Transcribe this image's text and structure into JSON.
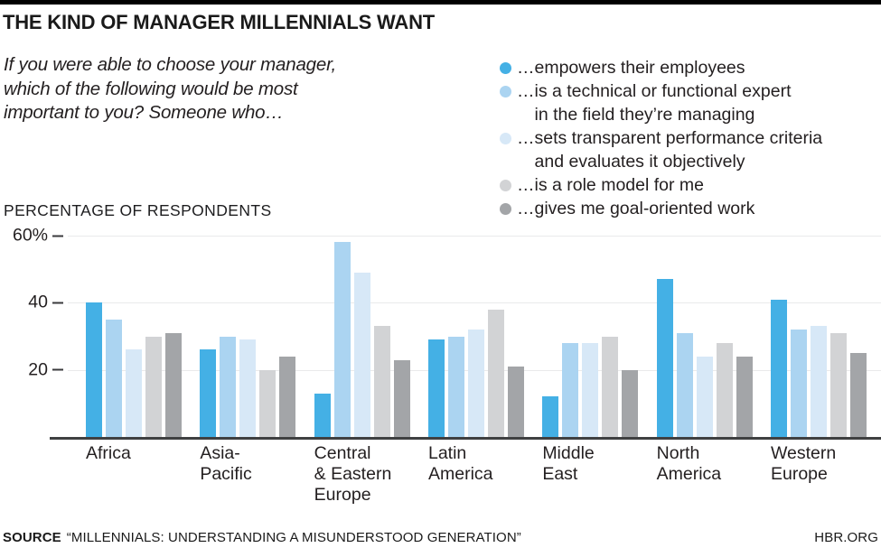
{
  "question": {
    "display": "If you were able to choose your manager,\nwhich of the following would be most\nimportant to you? Someone who…"
  },
  "chart_data": {
    "type": "bar",
    "title": "THE KIND OF MANAGER MILLENNIALS WANT",
    "subtitle": "If you were able to choose your manager, which of the following would be most important to you? Someone who…",
    "ylabel": "PERCENTAGE OF RESPONDENTS",
    "xlabel": "",
    "ylim": [
      0,
      60
    ],
    "yticks": [
      60,
      40,
      20
    ],
    "ytick_labels": [
      "60%",
      "40",
      "20"
    ],
    "grid": true,
    "legend_position": "top-right",
    "legend_prefix": "…",
    "categories": [
      "Africa",
      "Asia-Pacific",
      "Central & Eastern Europe",
      "Latin America",
      "Middle East",
      "North America",
      "Western Europe"
    ],
    "categories_display": [
      "Africa",
      "Asia-\nPacific",
      "Central\n& Eastern\nEurope",
      "Latin\nAmerica",
      "Middle\nEast",
      "North\nAmerica",
      "Western\nEurope"
    ],
    "series": [
      {
        "name": "empowers their employees",
        "label_display": "empowers their employees",
        "color": "#44b0e5",
        "values": [
          40,
          26,
          13,
          29,
          12,
          47,
          41
        ]
      },
      {
        "name": "is a technical or functional expert in the field they’re managing",
        "label_display": "is a technical or functional expert\nin the field they’re managing",
        "color": "#abd4f1",
        "values": [
          35,
          30,
          58,
          30,
          28,
          31,
          32
        ]
      },
      {
        "name": "sets transparent performance criteria and evaluates it objectively",
        "label_display": "sets transparent performance criteria\nand evaluates it objectively",
        "color": "#d7e8f7",
        "values": [
          26,
          29,
          49,
          32,
          28,
          24,
          33
        ]
      },
      {
        "name": "is a role model for me",
        "label_display": "is a role model for me",
        "color": "#d2d3d5",
        "values": [
          30,
          20,
          33,
          38,
          30,
          28,
          31
        ]
      },
      {
        "name": "gives me goal-oriented work",
        "label_display": "gives me goal-oriented work",
        "color": "#a3a5a8",
        "values": [
          31,
          24,
          23,
          21,
          20,
          24,
          25
        ]
      }
    ]
  },
  "footer": {
    "source_label": "SOURCE",
    "source_text": "“MILLENNIALS: UNDERSTANDING A MISUNDERSTOOD GENERATION”",
    "site": "HBR.ORG"
  }
}
